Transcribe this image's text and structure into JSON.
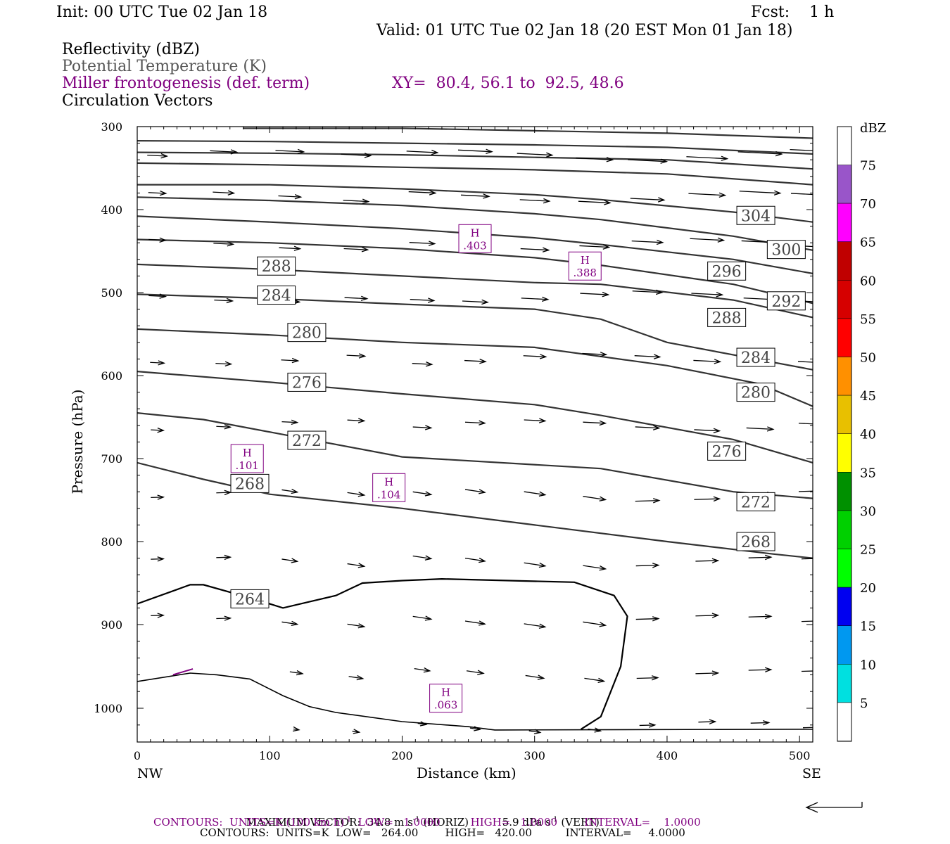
{
  "header": {
    "init": "Init: 00 UTC Tue 02 Jan 18",
    "fcst": "Fcst:    1 h",
    "valid": "Valid: 01 UTC Tue 02 Jan 18 (20 EST Mon 01 Jan 18)"
  },
  "legend": {
    "reflectivity": "Reflectivity (dBZ)",
    "theta": "Potential Temperature (K)",
    "miller": "Miller frontogenesis (def. term)",
    "xy": "XY=  80.4, 56.1 to  92.5, 48.6",
    "vectors": "Circulation Vectors"
  },
  "colors": {
    "purple": "#800080",
    "theta_contour": "#333333",
    "lowest_contour": "#000000"
  },
  "chart_data": {
    "type": "cross-section",
    "xlabel": "Distance (km)",
    "ylabel": "Pressure (hPa)",
    "xlim": [
      0,
      510
    ],
    "ylim": [
      1030,
      300
    ],
    "y_scale": "pressure (log-like)",
    "x_ticks": [
      "0",
      "100",
      "200",
      "300",
      "400",
      "500"
    ],
    "y_ticks": [
      "300",
      "400",
      "500",
      "600",
      "700",
      "800",
      "900",
      "1000"
    ],
    "x_end_labels": {
      "left": "NW",
      "right": "SE"
    },
    "colorbar": {
      "unit": "dBZ",
      "labels": [
        "5",
        "10",
        "15",
        "20",
        "25",
        "30",
        "35",
        "40",
        "45",
        "50",
        "55",
        "60",
        "65",
        "70",
        "75"
      ],
      "colors": [
        "#ffffff",
        "#00e0e0",
        "#0098f0",
        "#0000f0",
        "#00ff00",
        "#00d000",
        "#009000",
        "#ffff00",
        "#e8c000",
        "#ff9000",
        "#ff0000",
        "#d60000",
        "#c00000",
        "#ff00ff",
        "#9955c9",
        "#ffffff"
      ]
    },
    "theta_contours": [
      {
        "value": 264,
        "points": [
          [
            0,
            875
          ],
          [
            40,
            852
          ],
          [
            50,
            852
          ],
          [
            90,
            870
          ],
          [
            110,
            880
          ],
          [
            150,
            865
          ],
          [
            170,
            850
          ],
          [
            200,
            847
          ],
          [
            230,
            845
          ],
          [
            330,
            849
          ],
          [
            360,
            865
          ],
          [
            370,
            890
          ],
          [
            365,
            950
          ],
          [
            350,
            1010
          ],
          [
            335,
            1025
          ]
        ]
      },
      {
        "value": 268,
        "points": [
          [
            0,
            705
          ],
          [
            50,
            725
          ],
          [
            100,
            743
          ],
          [
            200,
            760
          ],
          [
            300,
            780
          ],
          [
            400,
            800
          ],
          [
            480,
            815
          ],
          [
            510,
            820
          ]
        ]
      },
      {
        "value": 272,
        "points": [
          [
            0,
            645
          ],
          [
            50,
            653
          ],
          [
            100,
            668
          ],
          [
            200,
            698
          ],
          [
            350,
            712
          ],
          [
            450,
            740
          ],
          [
            510,
            748
          ]
        ]
      },
      {
        "value": 276,
        "points": [
          [
            0,
            595
          ],
          [
            100,
            608
          ],
          [
            150,
            615
          ],
          [
            200,
            622
          ],
          [
            300,
            635
          ],
          [
            350,
            648
          ],
          [
            450,
            677
          ],
          [
            510,
            705
          ]
        ]
      },
      {
        "value": 280,
        "points": [
          [
            0,
            544
          ],
          [
            100,
            551
          ],
          [
            200,
            560
          ],
          [
            300,
            566
          ],
          [
            400,
            588
          ],
          [
            470,
            610
          ],
          [
            510,
            637
          ]
        ]
      },
      {
        "value": 284,
        "points": [
          [
            0,
            502
          ],
          [
            100,
            507
          ],
          [
            200,
            514
          ],
          [
            300,
            520
          ],
          [
            350,
            532
          ],
          [
            400,
            560
          ],
          [
            510,
            593
          ]
        ]
      },
      {
        "value": 288,
        "points": [
          [
            0,
            466
          ],
          [
            100,
            472
          ],
          [
            200,
            480
          ],
          [
            300,
            488
          ],
          [
            350,
            490
          ],
          [
            450,
            509
          ],
          [
            510,
            530
          ]
        ]
      },
      {
        "value": 292,
        "points": [
          [
            0,
            436
          ],
          [
            100,
            440
          ],
          [
            200,
            447
          ],
          [
            300,
            458
          ],
          [
            350,
            467
          ],
          [
            450,
            490
          ],
          [
            510,
            513
          ]
        ]
      },
      {
        "value": 296,
        "points": [
          [
            0,
            408
          ],
          [
            100,
            415
          ],
          [
            200,
            423
          ],
          [
            300,
            434
          ],
          [
            350,
            442
          ],
          [
            450,
            460
          ],
          [
            510,
            477
          ]
        ]
      },
      {
        "value": 300,
        "points": [
          [
            0,
            385
          ],
          [
            100,
            389
          ],
          [
            200,
            395
          ],
          [
            300,
            405
          ],
          [
            350,
            412
          ],
          [
            450,
            432
          ],
          [
            510,
            449
          ]
        ]
      },
      {
        "value": 304,
        "points": [
          [
            0,
            370
          ],
          [
            100,
            370
          ],
          [
            200,
            375
          ],
          [
            300,
            382
          ],
          [
            350,
            388
          ],
          [
            450,
            403
          ],
          [
            510,
            415
          ]
        ]
      },
      {
        "value": 308,
        "points": [
          [
            0,
            344
          ],
          [
            100,
            346
          ],
          [
            200,
            349
          ],
          [
            300,
            352
          ],
          [
            400,
            357
          ],
          [
            510,
            370
          ]
        ]
      },
      {
        "value": 312,
        "points": [
          [
            0,
            331
          ],
          [
            100,
            332
          ],
          [
            200,
            334
          ],
          [
            300,
            337
          ],
          [
            400,
            340
          ],
          [
            510,
            351
          ]
        ]
      },
      {
        "value": 316,
        "points": [
          [
            0,
            317
          ],
          [
            100,
            318
          ],
          [
            200,
            320
          ],
          [
            300,
            322
          ],
          [
            400,
            325
          ],
          [
            510,
            333
          ]
        ]
      },
      {
        "value": 320,
        "points": [
          [
            80,
            302
          ],
          [
            200,
            302
          ],
          [
            300,
            305
          ],
          [
            400,
            308
          ],
          [
            510,
            314
          ]
        ]
      }
    ],
    "theta_labels": [
      {
        "text": "288",
        "x": 105,
        "p": 468
      },
      {
        "text": "284",
        "x": 105,
        "p": 503
      },
      {
        "text": "280",
        "x": 128,
        "p": 548
      },
      {
        "text": "276",
        "x": 128,
        "p": 608
      },
      {
        "text": "272",
        "x": 128,
        "p": 678
      },
      {
        "text": "268",
        "x": 85,
        "p": 730
      },
      {
        "text": "264",
        "x": 85,
        "p": 869
      },
      {
        "text": "304",
        "x": 467,
        "p": 407
      },
      {
        "text": "300",
        "x": 490,
        "p": 448
      },
      {
        "text": "296",
        "x": 445,
        "p": 474
      },
      {
        "text": "292",
        "x": 490,
        "p": 510
      },
      {
        "text": "288",
        "x": 445,
        "p": 530
      },
      {
        "text": "284",
        "x": 467,
        "p": 578
      },
      {
        "text": "280",
        "x": 467,
        "p": 620
      },
      {
        "text": "276",
        "x": 445,
        "p": 691
      },
      {
        "text": "272",
        "x": 467,
        "p": 752
      },
      {
        "text": "268",
        "x": 467,
        "p": 800
      }
    ],
    "miller_highs": [
      {
        "mark": "H",
        "value": ".403",
        "x": 255,
        "p": 435
      },
      {
        "mark": "H",
        "value": ".388",
        "x": 338,
        "p": 468
      },
      {
        "mark": "H",
        "value": ".101",
        "x": 83,
        "p": 700
      },
      {
        "mark": "H",
        "value": ".104",
        "x": 190,
        "p": 735
      },
      {
        "mark": "H",
        "value": ".063",
        "x": 233,
        "p": 988
      }
    ],
    "max_vector": {
      "label": "MAXIMUM VECTOR:",
      "horiz": "34.8 m s",
      "horiz_unit_sup": "-1",
      "horiz_tail": " (HORIZ)",
      "vert": "5.9 dPa s",
      "vert_unit_sup": "-1",
      "vert_tail": " (VERT)"
    },
    "contour_info": [
      {
        "text": "CONTOURS:  UNITS=K (100 km h)",
        "sup": "-1",
        "rest": "  LOW=   1.0000         HIGH=   1.0000        INTERVAL=    1.0000",
        "color": "#800080"
      },
      {
        "text": "CONTOURS:  UNITS=K  LOW=   264.00",
        "sup": "",
        "rest": "        HIGH=   420.00          INTERVAL=     4.0000",
        "color": "#000000"
      }
    ]
  }
}
